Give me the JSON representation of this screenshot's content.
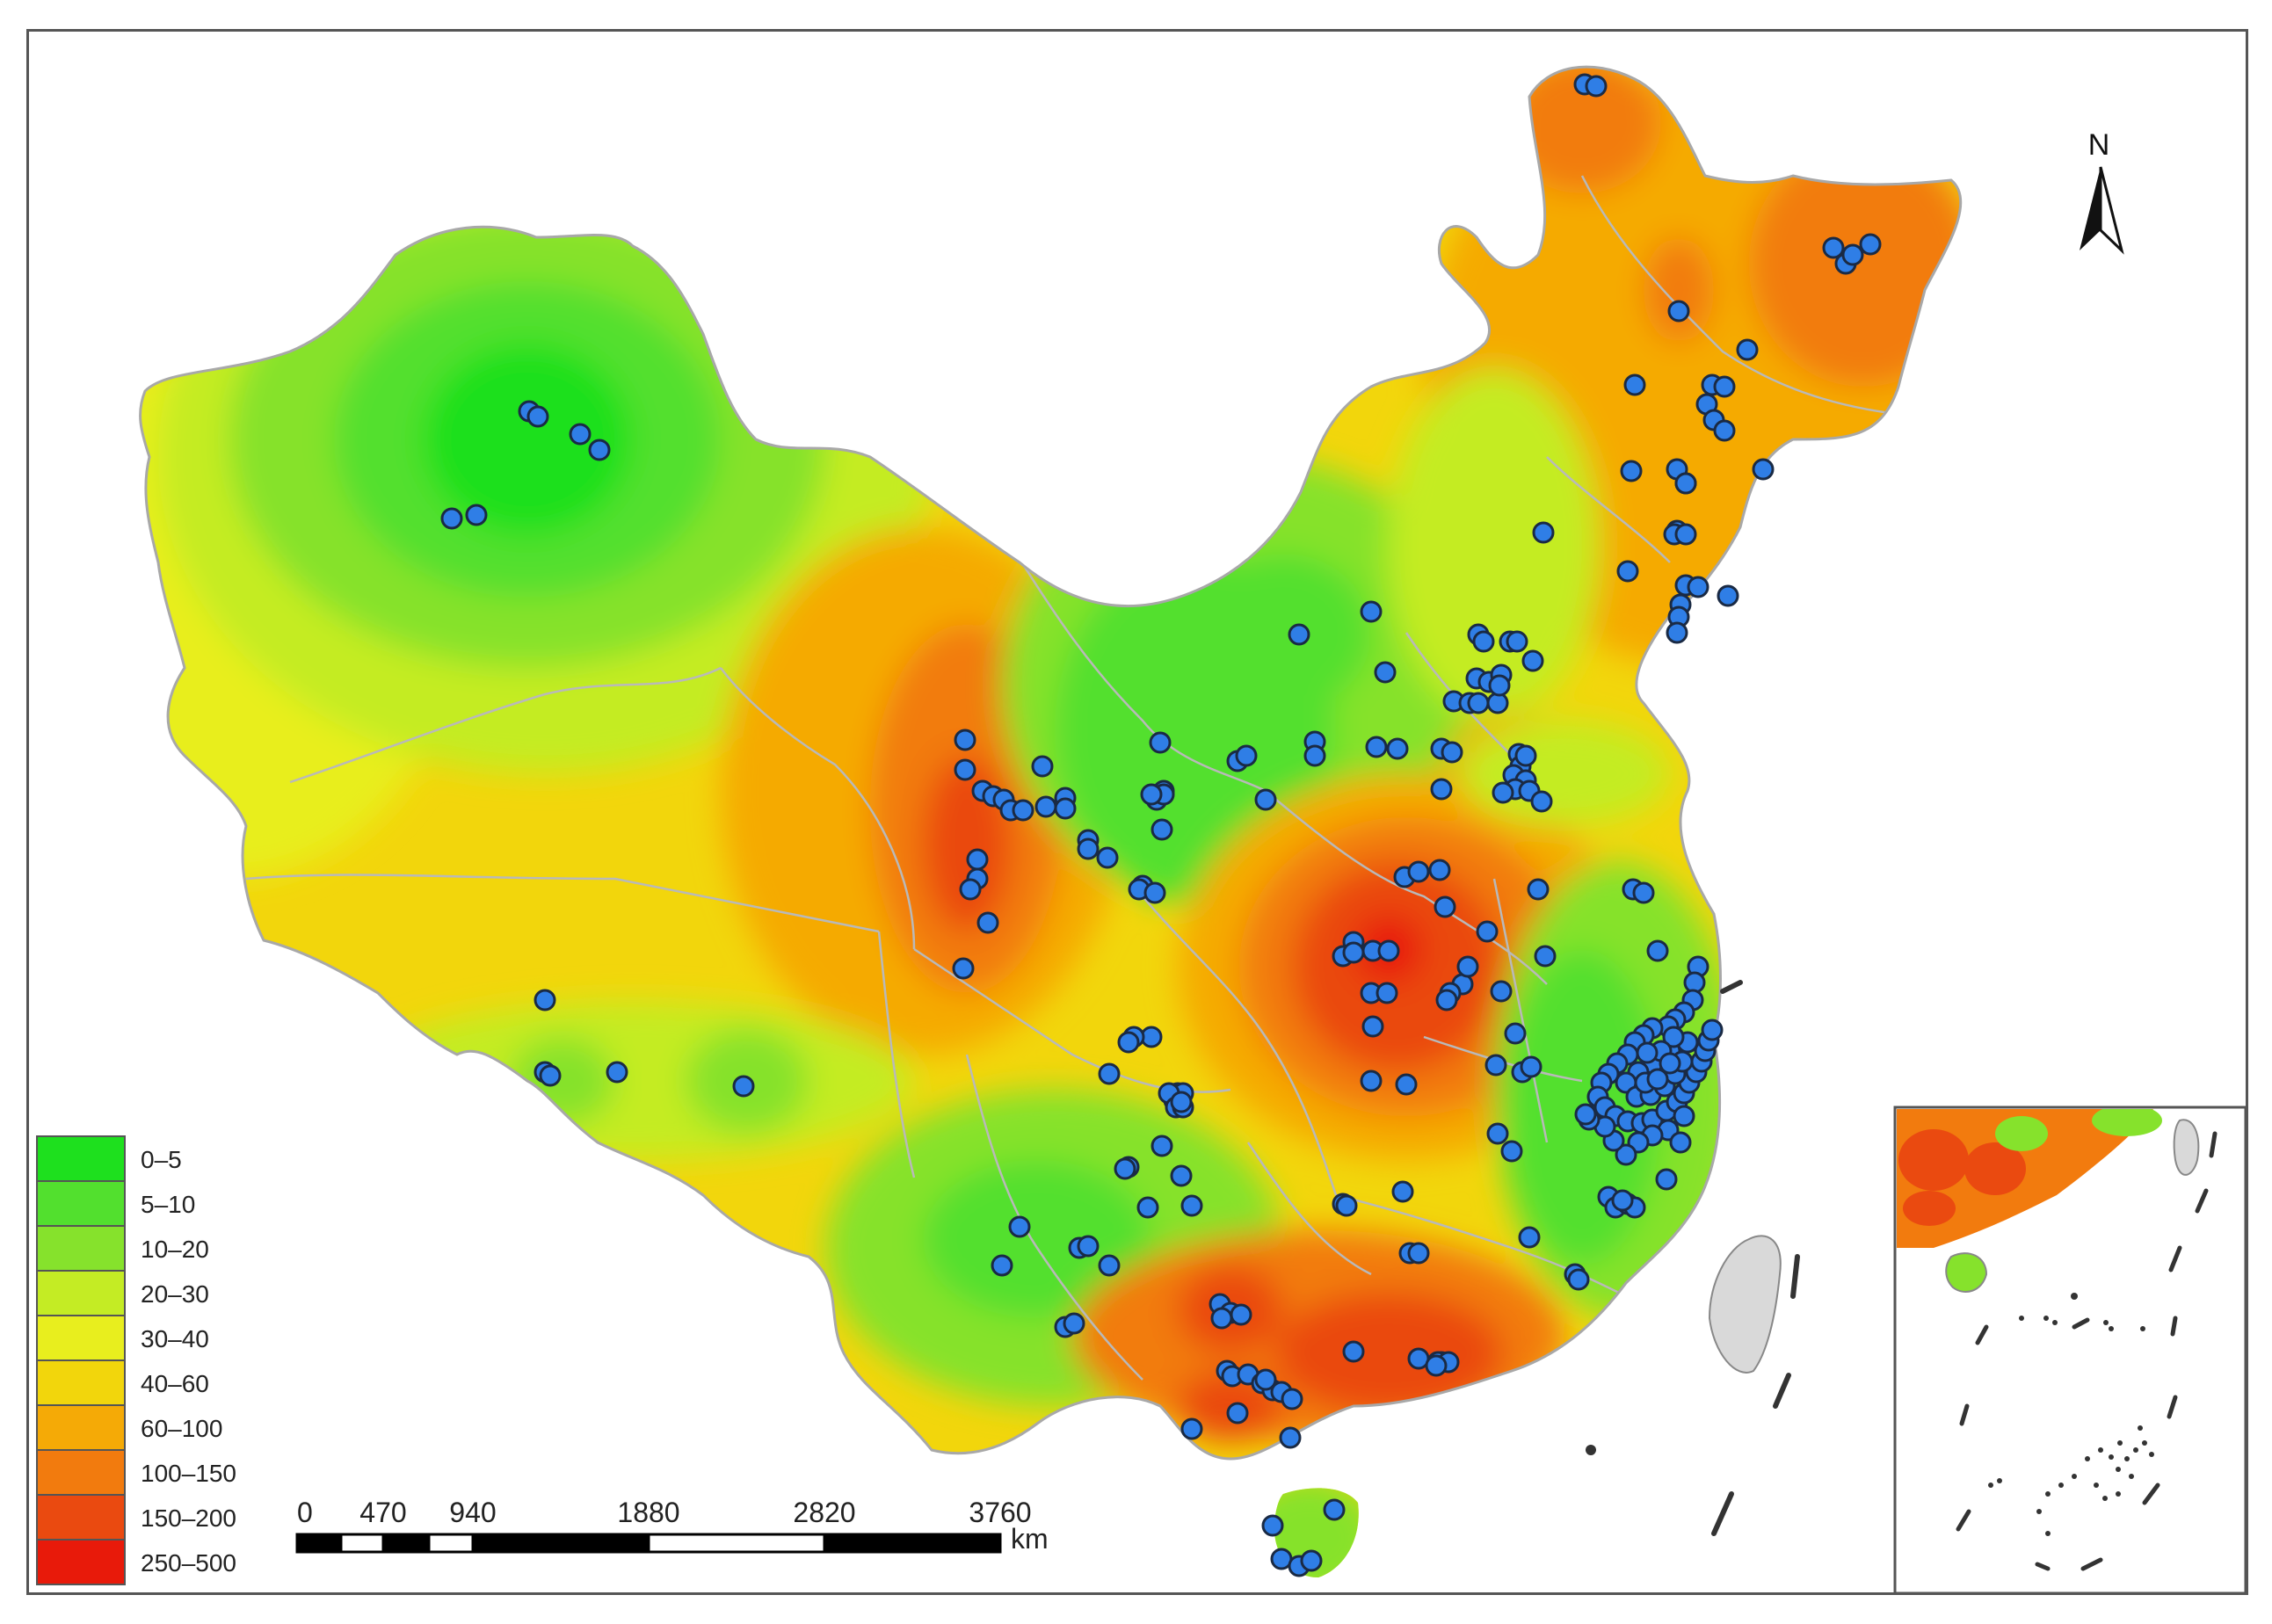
{
  "legend": {
    "classes": [
      {
        "label": "0–5",
        "color": "#1ee01e"
      },
      {
        "label": "5–10",
        "color": "#52e02e"
      },
      {
        "label": "10–20",
        "color": "#86e22c"
      },
      {
        "label": "20–30",
        "color": "#c4ec24"
      },
      {
        "label": "30–40",
        "color": "#e8ee1e"
      },
      {
        "label": "40–60",
        "color": "#f2d60c"
      },
      {
        "label": "60–100",
        "color": "#f5aa06"
      },
      {
        "label": "100–150",
        "color": "#f27b0e"
      },
      {
        "label": "150–200",
        "color": "#ea4a10"
      },
      {
        "label": "250–500",
        "color": "#e81a0a"
      }
    ]
  },
  "scale_bar": {
    "ticks": [
      "0",
      "470",
      "940",
      "1880",
      "2820",
      "3760"
    ],
    "unit": "km"
  },
  "north_arrow": {
    "label": "N",
    "icon": "north-arrow-icon"
  },
  "map": {
    "sample_sites_color": "#2f7ee6",
    "boundary_color": "#b9b9b9",
    "inset": "south-china-sea-inset"
  }
}
